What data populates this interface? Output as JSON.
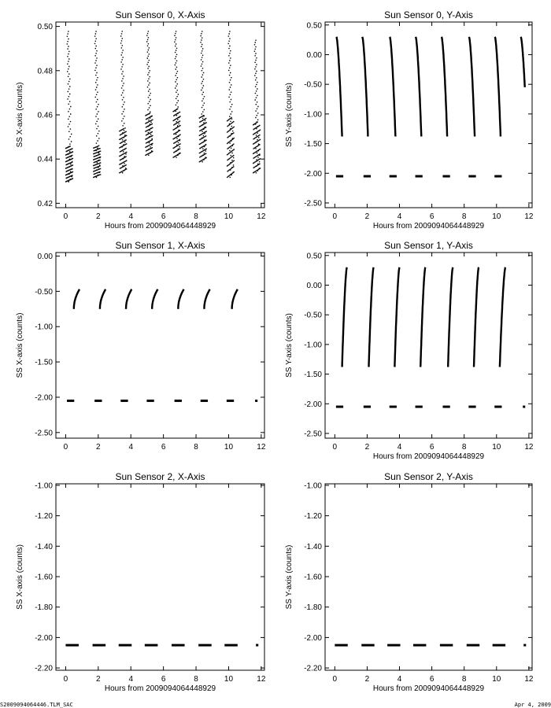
{
  "footer": {
    "file_name": "S2009094064446.TLM_SAC",
    "date": "Apr  4, 2009"
  },
  "colors": {
    "background": "#ffffff",
    "ink": "#000000"
  },
  "chart_data": [
    {
      "type": "scatter",
      "title": "Sun Sensor 0, X-Axis",
      "xlabel": "Hours from 2009094064448929",
      "ylabel": "SS X-axis (counts)",
      "xlim": [
        -0.6,
        12.2
      ],
      "ylim": [
        0.418,
        0.502
      ],
      "xticks": [
        0,
        2,
        4,
        6,
        8,
        10,
        12
      ],
      "xtick_labels": [
        "0",
        "2",
        "4",
        "6",
        "8",
        "10",
        "12"
      ],
      "yticks": [
        0.42,
        0.44,
        0.46,
        0.48,
        0.5
      ],
      "ytick_labels": [
        "0.42",
        "0.44",
        "0.46",
        "0.48",
        "0.50"
      ],
      "series": [
        {
          "style": "clusters",
          "x": [
            0.2,
            1.9,
            3.5,
            5.1,
            6.8,
            8.4,
            10.1,
            11.7
          ],
          "y_low": [
            0.43,
            0.432,
            0.434,
            0.442,
            0.441,
            0.439,
            0.432,
            0.434
          ],
          "y_high": [
            0.498,
            0.498,
            0.498,
            0.498,
            0.498,
            0.498,
            0.498,
            0.494
          ],
          "dense_high": [
            0.446,
            0.446,
            0.454,
            0.461,
            0.463,
            0.46,
            0.459,
            0.457
          ],
          "cluster_width": 0.45
        }
      ]
    },
    {
      "type": "scatter",
      "title": "Sun Sensor 0, Y-Axis",
      "xlabel": "Hours from 2009094064448929",
      "ylabel": "SS Y-axis (counts)",
      "xlim": [
        -0.6,
        12.2
      ],
      "ylim": [
        -2.58,
        0.55
      ],
      "xticks": [
        0,
        2,
        4,
        6,
        8,
        10,
        12
      ],
      "xtick_labels": [
        "0",
        "2",
        "4",
        "6",
        "8",
        "10",
        "12"
      ],
      "yticks": [
        0.5,
        0.0,
        -0.5,
        -1.0,
        -1.5,
        -2.0,
        -2.5
      ],
      "ytick_labels": [
        "0.50",
        "0.00",
        "-0.50",
        "-1.00",
        "-1.50",
        "-2.00",
        "-2.50"
      ],
      "series": [
        {
          "style": "arcs",
          "x_start": [
            0.1,
            1.7,
            3.4,
            5.0,
            6.6,
            8.3,
            9.9,
            11.5
          ],
          "x_end": [
            0.45,
            2.05,
            3.75,
            5.35,
            6.95,
            8.65,
            10.25,
            11.75
          ],
          "y_start": 0.3,
          "y_end": [
            -1.38,
            -1.38,
            -1.38,
            -1.38,
            -1.38,
            -1.38,
            -1.38,
            -0.55
          ]
        },
        {
          "style": "dashes",
          "x": [
            0.3,
            2.0,
            3.6,
            5.2,
            6.9,
            8.5,
            10.1
          ],
          "y": -2.05,
          "width": 0.45
        }
      ]
    },
    {
      "type": "scatter",
      "title": "Sun Sensor 1, X-Axis",
      "xlabel": "",
      "ylabel": "SS X-axis (counts)",
      "xlim": [
        -0.6,
        12.2
      ],
      "ylim": [
        -2.58,
        0.05
      ],
      "xticks": [
        0,
        2,
        4,
        6,
        8,
        10,
        12
      ],
      "xtick_labels": [
        "0",
        "2",
        "4",
        "6",
        "8",
        "10",
        "12"
      ],
      "yticks": [
        0.0,
        -0.5,
        -1.0,
        -1.5,
        -2.0,
        -2.5
      ],
      "ytick_labels": [
        "0.00",
        "-0.50",
        "-1.00",
        "-1.50",
        "-2.00",
        "-2.50"
      ],
      "series": [
        {
          "style": "hooks",
          "x_start": [
            0.5,
            2.1,
            3.7,
            5.3,
            6.9,
            8.5,
            10.2
          ],
          "x_end": [
            0.85,
            2.45,
            4.05,
            5.65,
            7.25,
            8.85,
            10.55
          ],
          "y_start": -0.75,
          "y_end": -0.47
        },
        {
          "style": "dashes",
          "x": [
            0.3,
            2.0,
            3.6,
            5.2,
            6.9,
            8.5,
            10.1,
            11.7
          ],
          "y": -2.05,
          "width": [
            0.45,
            0.45,
            0.45,
            0.45,
            0.45,
            0.45,
            0.45,
            0.15
          ]
        }
      ]
    },
    {
      "type": "scatter",
      "title": "Sun Sensor 1, Y-Axis",
      "xlabel": "Hours from 2009094064448929",
      "ylabel": "SS Y-axis (counts)",
      "xlim": [
        -0.6,
        12.2
      ],
      "ylim": [
        -2.58,
        0.55
      ],
      "xticks": [
        0,
        2,
        4,
        6,
        8,
        10,
        12
      ],
      "xtick_labels": [
        "0",
        "2",
        "4",
        "6",
        "8",
        "10",
        "12"
      ],
      "yticks": [
        0.5,
        0.0,
        -0.5,
        -1.0,
        -1.5,
        -2.0,
        -2.5
      ],
      "ytick_labels": [
        "0.50",
        "0.00",
        "-0.50",
        "-1.00",
        "-1.50",
        "-2.00",
        "-2.50"
      ],
      "series": [
        {
          "style": "rises",
          "x_start": [
            0.45,
            2.1,
            3.7,
            5.3,
            7.0,
            8.6,
            10.2
          ],
          "x_end": [
            0.75,
            2.4,
            4.0,
            5.6,
            7.3,
            8.9,
            10.55
          ],
          "y_start": -1.38,
          "y_end": 0.3
        },
        {
          "style": "dashes",
          "x": [
            0.3,
            2.0,
            3.6,
            5.2,
            6.9,
            8.5,
            10.1,
            11.7
          ],
          "y": -2.05,
          "width": [
            0.45,
            0.45,
            0.45,
            0.45,
            0.45,
            0.45,
            0.45,
            0.15
          ]
        }
      ]
    },
    {
      "type": "scatter",
      "title": "Sun Sensor 2, X-Axis",
      "xlabel": "Hours from 2009094064448929",
      "ylabel": "SS X-axis (counts)",
      "xlim": [
        -0.6,
        12.2
      ],
      "ylim": [
        -2.215,
        -0.99
      ],
      "xticks": [
        0,
        2,
        4,
        6,
        8,
        10,
        12
      ],
      "xtick_labels": [
        "0",
        "2",
        "4",
        "6",
        "8",
        "10",
        "12"
      ],
      "yticks": [
        -1.0,
        -1.2,
        -1.4,
        -1.6,
        -1.8,
        -2.0,
        -2.2
      ],
      "ytick_labels": [
        "-1.00",
        "-1.20",
        "-1.40",
        "-1.60",
        "-1.80",
        "-2.00",
        "-2.20"
      ],
      "series": [
        {
          "style": "dashes",
          "x": [
            0.4,
            2.05,
            3.65,
            5.25,
            6.9,
            8.55,
            10.15,
            11.75
          ],
          "y": -2.05,
          "width": [
            0.8,
            0.8,
            0.8,
            0.8,
            0.8,
            0.8,
            0.8,
            0.15
          ]
        }
      ]
    },
    {
      "type": "scatter",
      "title": "Sun Sensor 2, Y-Axis",
      "xlabel": "Hours from 2009094064448929",
      "ylabel": "SS Y-axis (counts)",
      "xlim": [
        -0.6,
        12.2
      ],
      "ylim": [
        -2.215,
        -0.99
      ],
      "xticks": [
        0,
        2,
        4,
        6,
        8,
        10,
        12
      ],
      "xtick_labels": [
        "0",
        "2",
        "4",
        "6",
        "8",
        "10",
        "12"
      ],
      "yticks": [
        -1.0,
        -1.2,
        -1.4,
        -1.6,
        -1.8,
        -2.0,
        -2.2
      ],
      "ytick_labels": [
        "-1.00",
        "-1.20",
        "-1.40",
        "-1.60",
        "-1.80",
        "-2.00",
        "-2.20"
      ],
      "series": [
        {
          "style": "dashes",
          "x": [
            0.4,
            2.05,
            3.65,
            5.25,
            6.9,
            8.55,
            10.15,
            11.75
          ],
          "y": -2.05,
          "width": [
            0.8,
            0.8,
            0.8,
            0.8,
            0.8,
            0.8,
            0.8,
            0.15
          ]
        }
      ]
    }
  ]
}
